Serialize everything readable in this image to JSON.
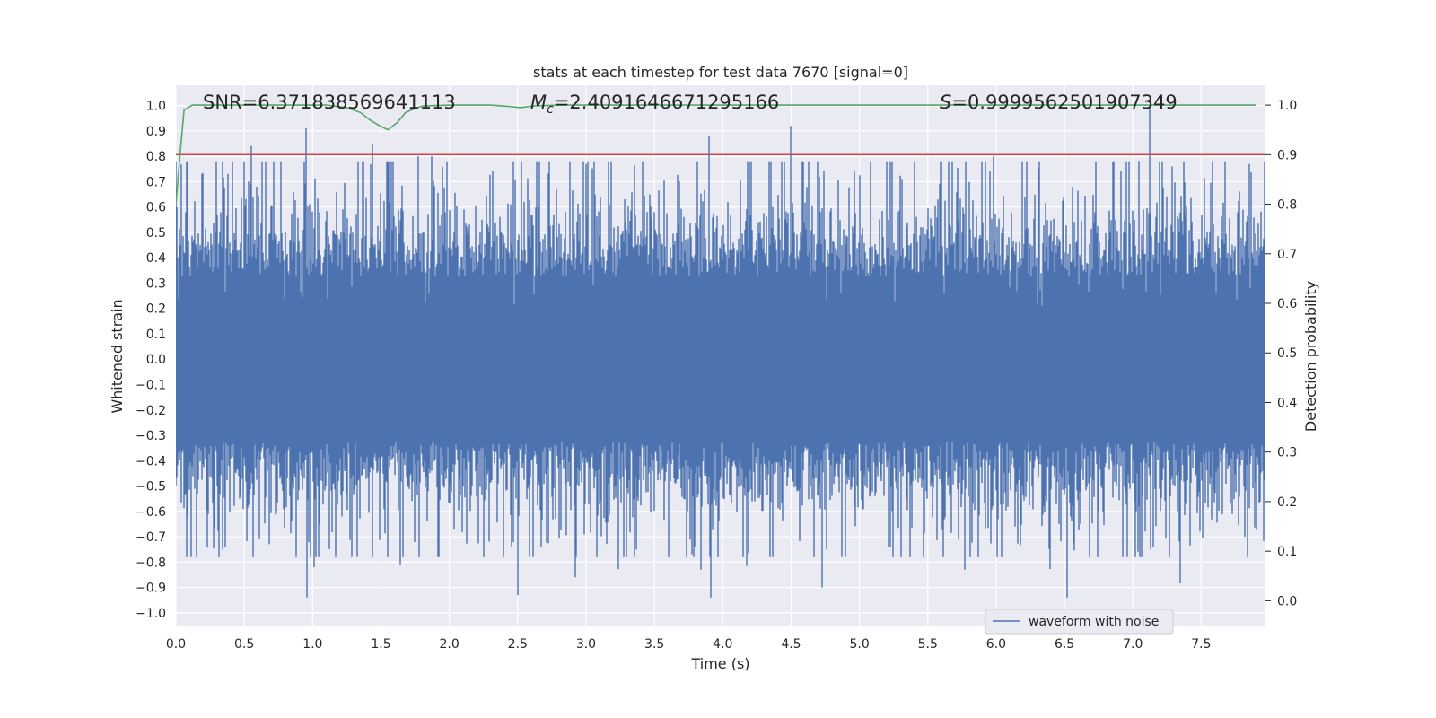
{
  "chart_data": {
    "type": "line",
    "title": "stats at each timestep for test data 7670 [signal=0]",
    "xlabel": "Time (s)",
    "ylabel": "Whitened strain",
    "y2label": "Detection probability",
    "xlim": [
      0.0,
      7.97
    ],
    "ylim": [
      -1.05,
      1.08
    ],
    "y2lim": [
      -0.05,
      1.04
    ],
    "xticks": [
      0.0,
      0.5,
      1.0,
      1.5,
      2.0,
      2.5,
      3.0,
      3.5,
      4.0,
      4.5,
      5.0,
      5.5,
      6.0,
      6.5,
      7.0,
      7.5
    ],
    "xtick_labels": [
      "0.0",
      "0.5",
      "1.0",
      "1.5",
      "2.0",
      "2.5",
      "3.0",
      "3.5",
      "4.0",
      "4.5",
      "5.0",
      "5.5",
      "6.0",
      "6.5",
      "7.0",
      "7.5"
    ],
    "yticks": [
      -1.0,
      -0.9,
      -0.8,
      -0.7,
      -0.6,
      -0.5,
      -0.4,
      -0.3,
      -0.2,
      -0.1,
      0.0,
      0.1,
      0.2,
      0.3,
      0.4,
      0.5,
      0.6,
      0.7,
      0.8,
      0.9,
      1.0
    ],
    "ytick_labels": [
      "−1.0",
      "−0.9",
      "−0.8",
      "−0.7",
      "−0.6",
      "−0.5",
      "−0.4",
      "−0.3",
      "−0.2",
      "−0.1",
      "0.0",
      "0.1",
      "0.2",
      "0.3",
      "0.4",
      "0.5",
      "0.6",
      "0.7",
      "0.8",
      "0.9",
      "1.0"
    ],
    "y2ticks": [
      0.0,
      0.1,
      0.2,
      0.3,
      0.4,
      0.5,
      0.6,
      0.7,
      0.8,
      0.9,
      1.0
    ],
    "y2tick_labels": [
      "0.0",
      "0.1",
      "0.2",
      "0.3",
      "0.4",
      "0.5",
      "0.6",
      "0.7",
      "0.8",
      "0.9",
      "1.0"
    ],
    "grid": true,
    "background": "#eaeaf2",
    "series": [
      {
        "name": "waveform with noise",
        "axis": "left",
        "color": "#4c72b0",
        "kind": "noise",
        "sample_rate_hz": 4096,
        "duration_s": 7.97,
        "core_amplitude": 0.42,
        "spikes": [
          {
            "t": 0.55,
            "v": 0.84
          },
          {
            "t": 0.95,
            "v": 0.91
          },
          {
            "t": 1.44,
            "v": 0.85
          },
          {
            "t": 1.77,
            "v": 0.8
          },
          {
            "t": 1.87,
            "v": 0.8
          },
          {
            "t": 3.0,
            "v": 0.77
          },
          {
            "t": 3.9,
            "v": 0.88
          },
          {
            "t": 4.5,
            "v": 0.92
          },
          {
            "t": 5.98,
            "v": 0.8
          },
          {
            "t": 7.12,
            "v": 1.0
          },
          {
            "t": 7.85,
            "v": 0.77
          },
          {
            "t": 0.34,
            "v": -0.75
          },
          {
            "t": 0.96,
            "v": -0.94
          },
          {
            "t": 1.01,
            "v": -0.82
          },
          {
            "t": 2.5,
            "v": -0.93
          },
          {
            "t": 2.92,
            "v": -0.86
          },
          {
            "t": 3.91,
            "v": -0.94
          },
          {
            "t": 3.84,
            "v": -0.83
          },
          {
            "t": 4.73,
            "v": -0.9
          },
          {
            "t": 5.77,
            "v": -0.83
          },
          {
            "t": 6.52,
            "v": -0.94
          },
          {
            "t": 7.15,
            "v": -0.74
          },
          {
            "t": 7.82,
            "v": -0.7
          }
        ]
      },
      {
        "name": "detection probability",
        "axis": "right",
        "color": "#55a868",
        "x": [
          0.0,
          0.03,
          0.06,
          0.12,
          0.3,
          0.6,
          0.9,
          1.1,
          1.25,
          1.35,
          1.42,
          1.48,
          1.55,
          1.62,
          1.68,
          1.72,
          1.8,
          2.0,
          2.3,
          2.45,
          2.52,
          2.6,
          2.8,
          3.2,
          4.0,
          5.0,
          6.0,
          7.0,
          7.9
        ],
        "y": [
          0.8,
          0.9,
          0.99,
          1.0,
          1.0,
          1.0,
          1.0,
          1.0,
          0.995,
          0.985,
          0.97,
          0.96,
          0.95,
          0.965,
          0.985,
          0.99,
          0.998,
          1.0,
          1.0,
          0.997,
          0.995,
          0.998,
          1.0,
          1.0,
          1.0,
          1.0,
          1.0,
          1.0,
          1.0
        ]
      },
      {
        "name": "threshold",
        "axis": "right",
        "color": "#c44e52",
        "x": [
          0.0,
          7.97
        ],
        "y": [
          0.9,
          0.9
        ]
      }
    ],
    "legend": {
      "entries": [
        "waveform with noise"
      ],
      "placement": "lower-right"
    },
    "annotations": {
      "snr": "SNR=6.371838569641113",
      "mc_symbol": "M",
      "mc_sub": "c",
      "mc_value": "=2.4091646671295166",
      "s_symbol": "S",
      "s_value": "=0.9999562501907349"
    }
  }
}
